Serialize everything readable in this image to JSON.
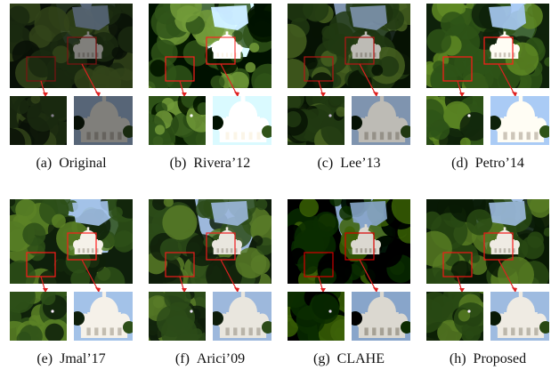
{
  "panels": [
    {
      "label": "(a)",
      "name": "Original",
      "brightness": 0.55,
      "saturation": 1.0,
      "contrast": 1.0
    },
    {
      "label": "(b)",
      "name": "Rivera’12",
      "brightness": 1.25,
      "saturation": 0.85,
      "contrast": 1.2
    },
    {
      "label": "(c)",
      "name": "Lee’13",
      "brightness": 0.8,
      "saturation": 1.0,
      "contrast": 1.05
    },
    {
      "label": "(d)",
      "name": "Petro’14",
      "brightness": 1.1,
      "saturation": 1.2,
      "contrast": 1.0
    },
    {
      "label": "(e)",
      "name": "Jmal’17",
      "brightness": 1.05,
      "saturation": 1.15,
      "contrast": 1.0
    },
    {
      "label": "(f)",
      "name": "Arici’09",
      "brightness": 1.0,
      "saturation": 1.1,
      "contrast": 1.0
    },
    {
      "label": "(g)",
      "name": "CLAHE",
      "brightness": 0.85,
      "saturation": 1.05,
      "contrast": 1.3
    },
    {
      "label": "(h)",
      "name": "Proposed",
      "brightness": 1.0,
      "saturation": 1.1,
      "contrast": 1.05
    }
  ],
  "colors": {
    "sky": "#9fb8d8",
    "foliage_dark": "#0f1d0c",
    "foliage_mid": "#2e4a1c",
    "foliage_light": "#5b7a2e",
    "basilica": "#e9e6df",
    "highlight_box": "#e02020"
  }
}
